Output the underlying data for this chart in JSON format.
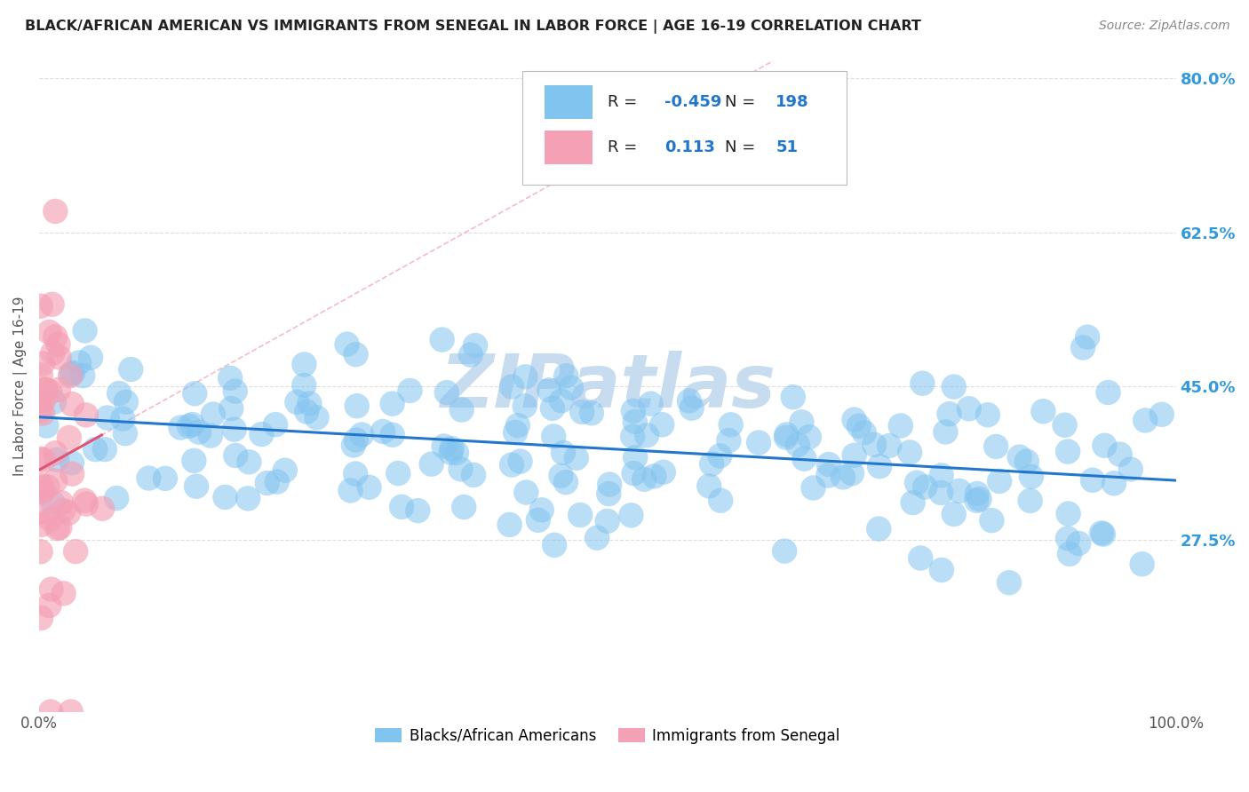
{
  "title": "BLACK/AFRICAN AMERICAN VS IMMIGRANTS FROM SENEGAL IN LABOR FORCE | AGE 16-19 CORRELATION CHART",
  "source_text": "Source: ZipAtlas.com",
  "ylabel": "In Labor Force | Age 16-19",
  "xlim": [
    0.0,
    1.0
  ],
  "ylim": [
    0.08,
    0.82
  ],
  "ytick_positions": [
    0.275,
    0.45,
    0.625,
    0.8
  ],
  "ytick_labels": [
    "27.5%",
    "45.0%",
    "62.5%",
    "80.0%"
  ],
  "xtick_positions": [
    0.0,
    1.0
  ],
  "xtick_labels": [
    "0.0%",
    "100.0%"
  ],
  "blue_R": -0.459,
  "blue_N": 198,
  "pink_R": 0.113,
  "pink_N": 51,
  "blue_scatter_color": "#82C4F0",
  "pink_scatter_color": "#F4A0B5",
  "blue_line_color": "#2277CC",
  "pink_line_color": "#E05575",
  "pink_dash_color": "#F0A0B0",
  "watermark": "ZIPatlas",
  "watermark_color": "#C8DCF0",
  "legend_label_blue": "Blacks/African Americans",
  "legend_label_pink": "Immigrants from Senegal",
  "blue_intercept": 0.415,
  "blue_slope": -0.072,
  "pink_intercept": 0.355,
  "pink_slope": 0.72,
  "background_color": "#FFFFFF",
  "grid_color": "#DDDDDD",
  "title_color": "#222222",
  "label_color": "#555555",
  "right_axis_label_color": "#3399DD"
}
